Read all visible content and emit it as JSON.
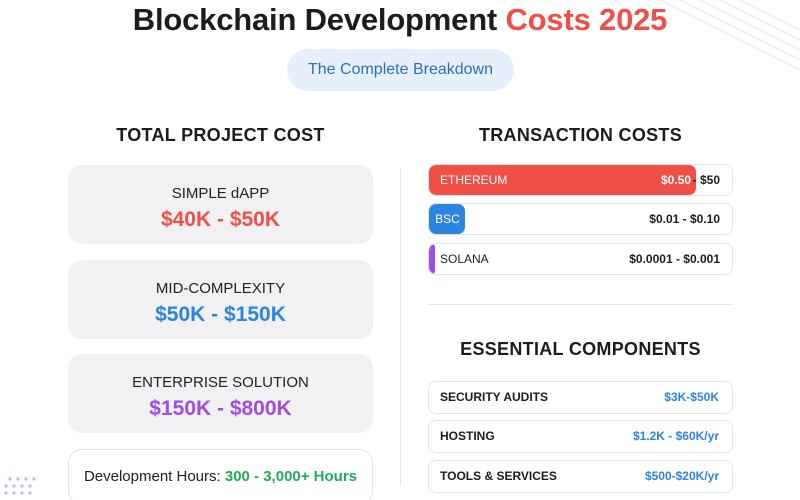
{
  "header": {
    "title_main": "Blockchain Development",
    "title_accent": "Costs 2025",
    "subtitle": "The Complete Breakdown"
  },
  "colors": {
    "accent_red": "#ef4f47",
    "blue": "#2b84e0",
    "purple": "#a24ce8",
    "green": "#1fae55"
  },
  "total_project_cost": {
    "heading": "TOTAL PROJECT COST",
    "tiers": [
      {
        "label": "SIMPLE dAPP",
        "value": "$40K - $50K"
      },
      {
        "label": "MID-COMPLEXITY",
        "value": "$50K - $150K"
      },
      {
        "label": "ENTERPRISE SOLUTION",
        "value": "$150K - $800K"
      }
    ],
    "hours_label": "Development Hours:",
    "hours_value": "300 - 3,000+ Hours"
  },
  "transaction_costs": {
    "heading": "TRANSACTION COSTS",
    "chains": [
      {
        "name": "ETHEREUM",
        "price_part1": "$0.50",
        "price_part2": "- $50",
        "fill": 0.88
      },
      {
        "name": "BSC",
        "price": "$0.01 - $0.10",
        "fill": 0.12
      },
      {
        "name": "SOLANA",
        "price": "$0.0001 - $0.001",
        "fill": 0.02
      }
    ]
  },
  "essential_components": {
    "heading": "ESSENTIAL COMPONENTS",
    "items": [
      {
        "name": "SECURITY AUDITS",
        "price": "$3K-$50K"
      },
      {
        "name": "HOSTING",
        "price": "$1.2K - $60K/yr"
      },
      {
        "name": "TOOLS & SERVICES",
        "price": "$500-$20K/yr"
      }
    ]
  }
}
